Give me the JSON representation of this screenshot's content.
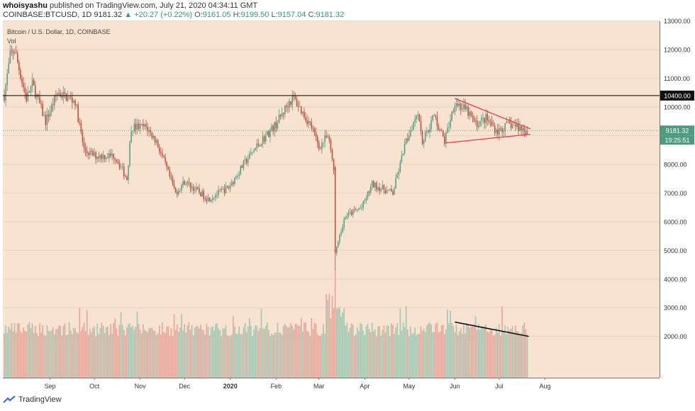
{
  "header": {
    "user": "whoisyashu",
    "published": "published on TradingView.com, July 21, 2020 04:34:11 GMT",
    "symbol": "COINBASE:BTCUSD, 1D",
    "last": "9181.32",
    "change": "▲ +20.27 (+0.22%)",
    "o_label": "O:",
    "o": "9161.05",
    "h_label": "H:",
    "h": "9199.50",
    "l_label": "L:",
    "l": "9157.04",
    "c_label": "C:",
    "c": "9181.32"
  },
  "chart_title": "Bitcoin / U.S. Dollar, 1D, COINBASE",
  "vol_label": "Vol",
  "footer": {
    "brand": "TradingView"
  },
  "colors": {
    "up": "#4e9c80",
    "down": "#c0453a",
    "bg": "#f7e3cf",
    "trend": "#f23645",
    "resistance": "#000000"
  },
  "price_badge": {
    "value": "9181.32",
    "countdown": "19:25:51"
  },
  "resistance_badge": "10400.00",
  "chart_data": {
    "type": "candlestick",
    "x_labels": [
      "Sep",
      "Oct",
      "Nov",
      "Dec",
      "2020",
      "Feb",
      "Mar",
      "Apr",
      "May",
      "Jun",
      "Jul",
      "Aug"
    ],
    "y_ticks": [
      "13000.00",
      "12000.00",
      "11000.00",
      "10000.00",
      "9000.00",
      "8000.00",
      "7000.00",
      "6000.00",
      "5000.00",
      "4000.00",
      "3000.00",
      "2000.00"
    ],
    "resistance_level": 10400,
    "current_price": 9181.32,
    "price_anchors": [
      [
        "2019-08-01",
        10400
      ],
      [
        "2019-08-05",
        11800
      ],
      [
        "2019-08-08",
        12000
      ],
      [
        "2019-08-13",
        10900
      ],
      [
        "2019-08-16",
        10300
      ],
      [
        "2019-08-20",
        10800
      ],
      [
        "2019-08-29",
        9500
      ],
      [
        "2019-09-06",
        10500
      ],
      [
        "2019-09-18",
        10200
      ],
      [
        "2019-09-24",
        8500
      ],
      [
        "2019-10-01",
        8300
      ],
      [
        "2019-10-15",
        8300
      ],
      [
        "2019-10-23",
        7500
      ],
      [
        "2019-10-26",
        9300
      ],
      [
        "2019-11-05",
        9300
      ],
      [
        "2019-11-12",
        8800
      ],
      [
        "2019-11-25",
        7000
      ],
      [
        "2019-12-01",
        7400
      ],
      [
        "2019-12-17",
        6800
      ],
      [
        "2019-12-31",
        7200
      ],
      [
        "2020-01-10",
        8000
      ],
      [
        "2020-01-20",
        8700
      ],
      [
        "2020-02-01",
        9400
      ],
      [
        "2020-02-10",
        10200
      ],
      [
        "2020-02-13",
        10300
      ],
      [
        "2020-02-25",
        9300
      ],
      [
        "2020-03-01",
        8600
      ],
      [
        "2020-03-07",
        9000
      ],
      [
        "2020-03-11",
        7900
      ],
      [
        "2020-03-12",
        4900
      ],
      [
        "2020-03-19",
        6200
      ],
      [
        "2020-03-30",
        6500
      ],
      [
        "2020-04-06",
        7300
      ],
      [
        "2020-04-20",
        7000
      ],
      [
        "2020-04-29",
        8800
      ],
      [
        "2020-05-07",
        9900
      ],
      [
        "2020-05-10",
        8800
      ],
      [
        "2020-05-18",
        9700
      ],
      [
        "2020-05-25",
        8800
      ],
      [
        "2020-06-01",
        10200
      ],
      [
        "2020-06-10",
        9800
      ],
      [
        "2020-06-15",
        9400
      ],
      [
        "2020-06-22",
        9600
      ],
      [
        "2020-06-30",
        9150
      ],
      [
        "2020-07-08",
        9400
      ],
      [
        "2020-07-20",
        9181
      ]
    ],
    "triangle": {
      "upper": [
        [
          "2020-06-01",
          10300
        ],
        [
          "2020-07-22",
          9240
        ]
      ],
      "lower": [
        [
          "2020-05-26",
          8750
        ],
        [
          "2020-07-22",
          9050
        ]
      ]
    },
    "volume_trendline": [
      [
        "2020-06-01",
        2500
      ],
      [
        "2020-07-21",
        2000
      ]
    ],
    "volume_spike": {
      "date": "2020-03-12",
      "value": 4300
    }
  }
}
